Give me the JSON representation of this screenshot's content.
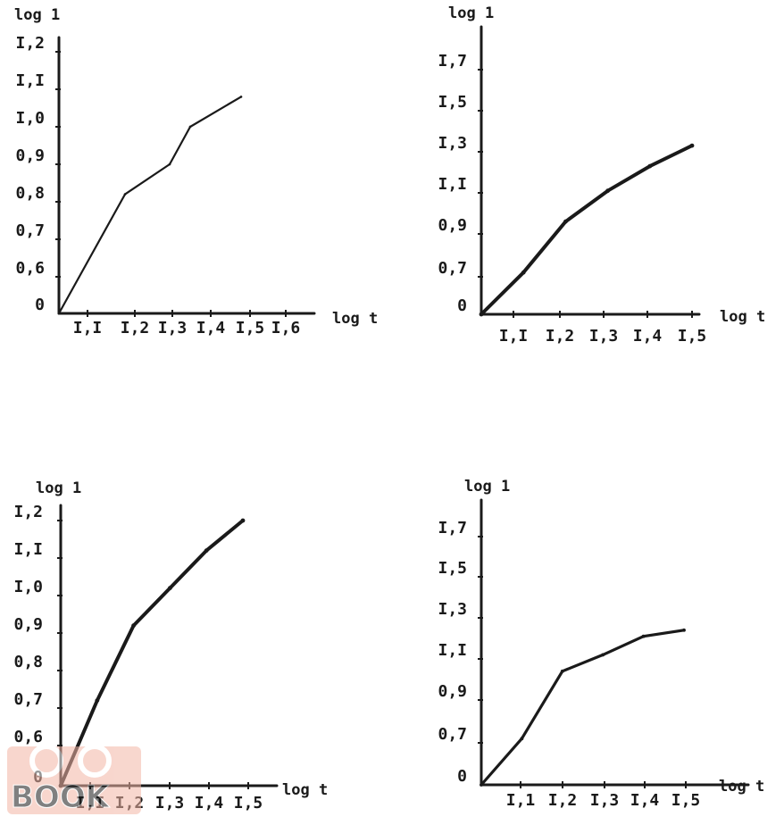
{
  "chart_data": [
    {
      "type": "line",
      "xlabel": "log t",
      "ylabel": "log 1",
      "x_tick_labels": [
        "I,I",
        "I,2",
        "I,3",
        "I,4",
        "I,5",
        "I,6"
      ],
      "y_tick_labels": [
        "0",
        "0,6",
        "0,7",
        "0,8",
        "0,9",
        "I,0",
        "I,I",
        "I,2"
      ],
      "series": [
        {
          "x": [
            1.0,
            1.2,
            1.3,
            1.35,
            1.5
          ],
          "y": [
            0.0,
            0.82,
            0.9,
            1.0,
            1.08
          ]
        }
      ],
      "grid": false
    },
    {
      "type": "line",
      "xlabel": "log t",
      "ylabel": "log 1",
      "x_tick_labels": [
        "I,I",
        "I,2",
        "I,3",
        "I,4",
        "I,5"
      ],
      "y_tick_labels": [
        "0",
        "0,7",
        "0,9",
        "I,I",
        "I,3",
        "I,5",
        "I,7"
      ],
      "series": [
        {
          "x": [
            1.0,
            1.1,
            1.2,
            1.3,
            1.4,
            1.5
          ],
          "y": [
            0.0,
            0.72,
            0.96,
            1.11,
            1.23,
            1.33
          ]
        }
      ],
      "grid": false
    },
    {
      "type": "line",
      "xlabel": "log t",
      "ylabel": "log 1",
      "x_tick_labels": [
        "I,I",
        "I,2",
        "I,3",
        "I,4",
        "I,5"
      ],
      "y_tick_labels": [
        "0",
        "0,6",
        "0,7",
        "0,8",
        "0,9",
        "I,0",
        "I,I",
        "I,2"
      ],
      "series": [
        {
          "x": [
            1.0,
            1.1,
            1.2,
            1.3,
            1.4,
            1.5
          ],
          "y": [
            0.0,
            0.72,
            0.92,
            1.02,
            1.12,
            1.2
          ]
        }
      ],
      "grid": false
    },
    {
      "type": "line",
      "xlabel": "log t",
      "ylabel": "log 1",
      "x_tick_labels": [
        "I,1",
        "I,2",
        "I,3",
        "I,4",
        "I,5"
      ],
      "y_tick_labels": [
        "0",
        "0,7",
        "0,9",
        "I,I",
        "I,3",
        "I,5",
        "I,7"
      ],
      "series": [
        {
          "x": [
            1.0,
            1.1,
            1.2,
            1.3,
            1.4,
            1.5
          ],
          "y": [
            0.0,
            0.72,
            1.04,
            1.12,
            1.21,
            1.24
          ]
        }
      ],
      "grid": false
    }
  ],
  "watermark": {
    "text": "BOOK",
    "color": "#e8826a"
  }
}
